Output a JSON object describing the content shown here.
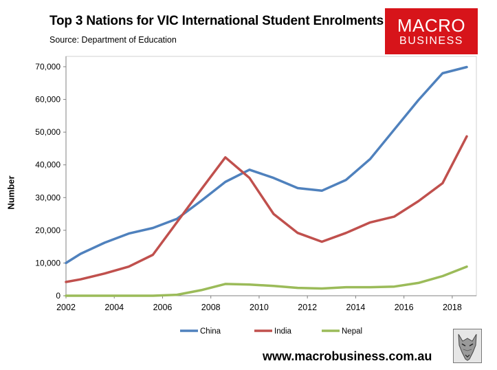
{
  "header": {
    "title": "Top 3 Nations for VIC International Student Enrolments",
    "source": "Source: Department of Education"
  },
  "logo": {
    "line1": "MACRO",
    "line2": "BUSINESS",
    "color": "#d7141a"
  },
  "footer": {
    "url": "www.macrobusiness.com.au"
  },
  "chart_data": {
    "type": "line",
    "title": "Top 3 Nations for VIC International Student Enrolments",
    "xlabel": "",
    "ylabel": "Number",
    "xlim": [
      2002,
      2019
    ],
    "ylim": [
      0,
      70000
    ],
    "x_ticks": [
      2002,
      2004,
      2006,
      2008,
      2010,
      2012,
      2014,
      2016,
      2018
    ],
    "x_tick_labels": [
      "2002",
      "2004",
      "2006",
      "2008",
      "2010",
      "2012",
      "2014",
      "2016",
      "2018"
    ],
    "y_ticks": [
      0,
      10000,
      20000,
      30000,
      40000,
      50000,
      60000,
      70000
    ],
    "y_tick_labels": [
      "0",
      "10,000",
      "20,000",
      "30,000",
      "40,000",
      "50,000",
      "60,000",
      "70,000"
    ],
    "grid": false,
    "legend_position": "bottom",
    "x": [
      2002,
      2002.6,
      2003.6,
      2004.6,
      2005.6,
      2006.6,
      2007.6,
      2008.6,
      2009.6,
      2010.6,
      2011.6,
      2012.6,
      2013.6,
      2014.6,
      2015.6,
      2016.6,
      2017.6,
      2018.6
    ],
    "series": [
      {
        "name": "China",
        "color": "#4f81bd",
        "values": [
          10000,
          12800,
          16200,
          19000,
          20700,
          23500,
          29000,
          34800,
          38500,
          36000,
          32900,
          32100,
          35400,
          41800,
          50800,
          59800,
          68000,
          69900
        ]
      },
      {
        "name": "India",
        "color": "#c0504d",
        "values": [
          4200,
          5000,
          6800,
          8900,
          12500,
          22500,
          32500,
          42300,
          36000,
          25000,
          19200,
          16500,
          19200,
          22400,
          24200,
          28900,
          34400,
          48700
        ]
      },
      {
        "name": "Nepal",
        "color": "#9bbb59",
        "values": [
          0,
          0,
          0,
          0,
          0,
          300,
          1700,
          3600,
          3400,
          3000,
          2400,
          2200,
          2600,
          2600,
          2800,
          3900,
          6000,
          8900
        ]
      }
    ]
  }
}
